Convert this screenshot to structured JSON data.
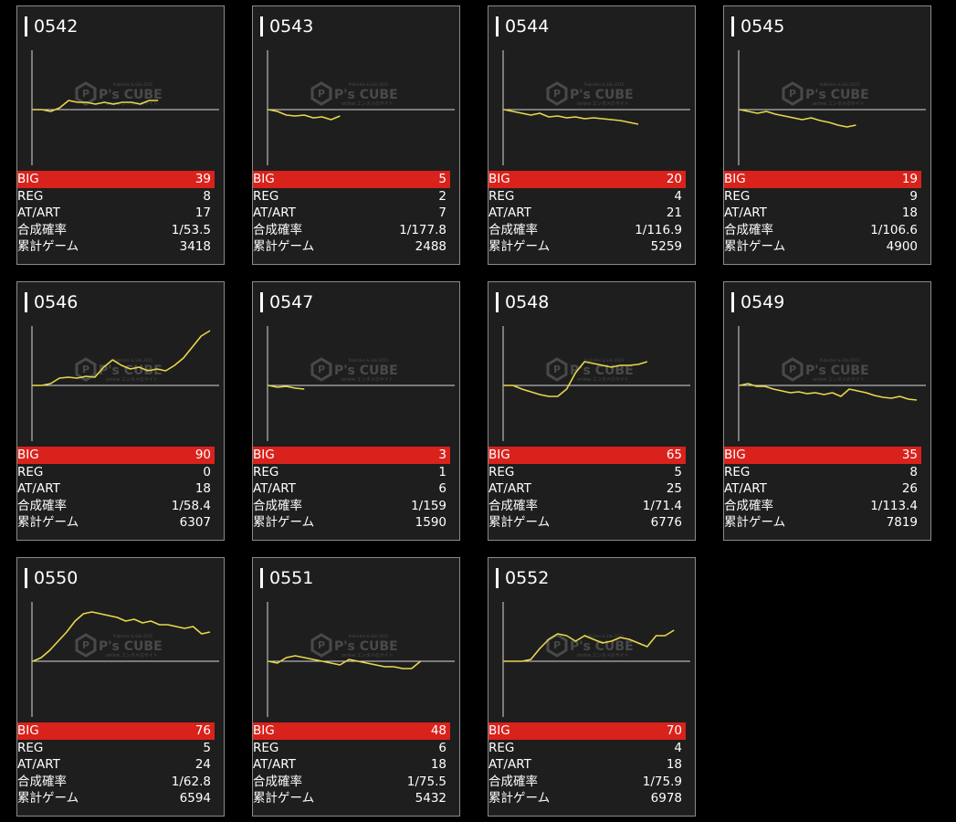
{
  "labels": {
    "big": "BIG",
    "reg": "REG",
    "at": "AT/ART",
    "prob": "合成確率",
    "games": "累計ゲーム"
  },
  "watermark": {
    "brand": "P's CUBE",
    "top": "Publisher & Site 2015",
    "bottom": "online エンタメのサイト"
  },
  "colors": {
    "background": "#000000",
    "card": "#1e1e1e",
    "big_bar": "#d9221b",
    "line": "#e8d84a"
  },
  "machines": [
    {
      "id": "0542",
      "big": "39",
      "reg": "8",
      "at": "17",
      "prob": "1/53.5",
      "games": "3418",
      "chart_data": {
        "type": "line",
        "series": [
          {
            "values": [
              0,
              0,
              -2,
              2,
              10,
              8,
              8,
              6,
              8,
              6,
              8,
              8,
              6,
              10,
              10
            ]
          }
        ]
      }
    },
    {
      "id": "0543",
      "big": "5",
      "reg": "2",
      "at": "7",
      "prob": "1/177.8",
      "games": "2488",
      "chart_data": {
        "type": "line",
        "series": [
          {
            "values": [
              0,
              -2,
              -6,
              -7,
              -6,
              -9,
              -8,
              -11,
              -7
            ]
          }
        ]
      }
    },
    {
      "id": "0544",
      "big": "20",
      "reg": "4",
      "at": "21",
      "prob": "1/116.9",
      "games": "5259",
      "chart_data": {
        "type": "line",
        "series": [
          {
            "values": [
              0,
              -2,
              -4,
              -6,
              -4,
              -8,
              -7,
              -9,
              -8,
              -10,
              -9,
              -10,
              -11,
              -12,
              -14,
              -16
            ]
          }
        ]
      }
    },
    {
      "id": "0545",
      "big": "19",
      "reg": "9",
      "at": "18",
      "prob": "1/106.6",
      "games": "4900",
      "chart_data": {
        "type": "line",
        "series": [
          {
            "values": [
              0,
              -2,
              -4,
              -2,
              -5,
              -7,
              -9,
              -11,
              -9,
              -12,
              -14,
              -17,
              -19,
              -17
            ]
          }
        ]
      }
    },
    {
      "id": "0546",
      "big": "90",
      "reg": "0",
      "at": "18",
      "prob": "1/58.4",
      "games": "6307",
      "chart_data": {
        "type": "line",
        "series": [
          {
            "values": [
              0,
              0,
              2,
              8,
              9,
              8,
              10,
              9,
              20,
              28,
              22,
              18,
              20,
              16,
              18,
              16,
              22,
              30,
              42,
              54,
              60
            ]
          }
        ]
      }
    },
    {
      "id": "0547",
      "big": "3",
      "reg": "1",
      "at": "6",
      "prob": "1/159",
      "games": "1590",
      "chart_data": {
        "type": "line",
        "series": [
          {
            "values": [
              0,
              -2,
              -1,
              -3,
              -4
            ]
          }
        ]
      }
    },
    {
      "id": "0548",
      "big": "65",
      "reg": "5",
      "at": "25",
      "prob": "1/71.4",
      "games": "6776",
      "chart_data": {
        "type": "line",
        "series": [
          {
            "values": [
              0,
              0,
              -4,
              -7,
              -10,
              -12,
              -12,
              -4,
              14,
              26,
              24,
              22,
              20,
              22,
              22,
              23,
              26
            ]
          }
        ]
      }
    },
    {
      "id": "0549",
      "big": "35",
      "reg": "8",
      "at": "26",
      "prob": "1/113.4",
      "games": "7819",
      "chart_data": {
        "type": "line",
        "series": [
          {
            "values": [
              0,
              2,
              -1,
              -1,
              -4,
              -6,
              -8,
              -7,
              -9,
              -8,
              -10,
              -8,
              -12,
              -4,
              -6,
              -8,
              -11,
              -13,
              -14,
              -12,
              -15,
              -16
            ]
          }
        ]
      }
    },
    {
      "id": "0550",
      "big": "76",
      "reg": "5",
      "at": "24",
      "prob": "1/62.8",
      "games": "6594",
      "chart_data": {
        "type": "line",
        "series": [
          {
            "values": [
              0,
              4,
              12,
              22,
              32,
              44,
              52,
              54,
              52,
              50,
              48,
              44,
              46,
              42,
              44,
              40,
              40,
              38,
              36,
              38,
              30,
              32
            ]
          }
        ]
      }
    },
    {
      "id": "0551",
      "big": "48",
      "reg": "6",
      "at": "18",
      "prob": "1/75.5",
      "games": "5432",
      "chart_data": {
        "type": "line",
        "series": [
          {
            "values": [
              0,
              -2,
              4,
              6,
              4,
              2,
              0,
              -2,
              -4,
              2,
              0,
              -2,
              -4,
              -6,
              -6,
              -8,
              -8,
              0
            ]
          }
        ]
      }
    },
    {
      "id": "0552",
      "big": "70",
      "reg": "4",
      "at": "18",
      "prob": "1/75.9",
      "games": "6978",
      "chart_data": {
        "type": "line",
        "series": [
          {
            "values": [
              0,
              0,
              0,
              2,
              14,
              24,
              30,
              28,
              22,
              28,
              24,
              20,
              22,
              26,
              24,
              20,
              16,
              28,
              28,
              34
            ]
          }
        ]
      }
    }
  ]
}
